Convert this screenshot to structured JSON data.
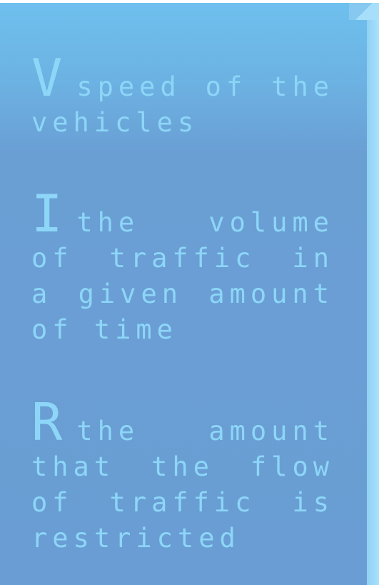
{
  "entries": [
    {
      "letter": "V",
      "definition": "speed of the vehicles"
    },
    {
      "letter": "I",
      "definition": "the volume of traffic in a given amount of time"
    },
    {
      "letter": "R",
      "definition": "the amount that the flow of traffic is restricted"
    }
  ],
  "colors": {
    "text": "#8dd6f8",
    "card_top": "#6ec0ee",
    "card_body": "#699dd3",
    "card_side": "#a9e1fb"
  }
}
